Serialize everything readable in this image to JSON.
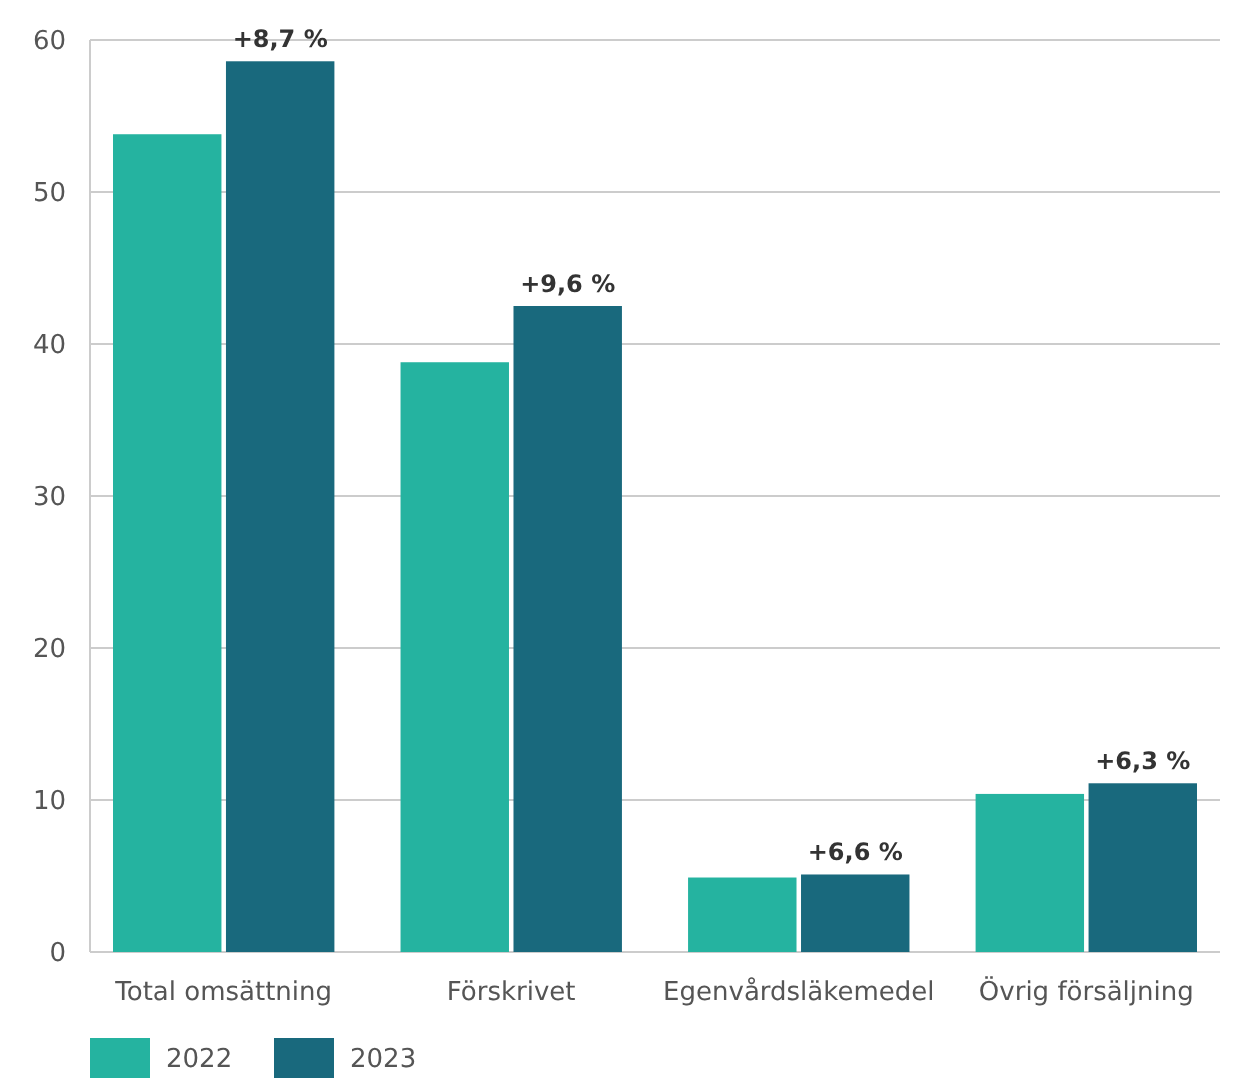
{
  "chart_data": {
    "type": "bar",
    "categories": [
      "Total omsättning",
      "Förskrivet",
      "Egenvårdsläkemedel",
      "Övrig försäljning"
    ],
    "series": [
      {
        "name": "2022",
        "color": "#25b3a0",
        "values": [
          53.8,
          38.8,
          4.9,
          10.4
        ]
      },
      {
        "name": "2023",
        "color": "#19697d",
        "values": [
          58.6,
          42.5,
          5.1,
          11.1
        ]
      }
    ],
    "annotations": [
      {
        "text": "+8,7 %",
        "x": "Total omsättning",
        "y": 58.6
      },
      {
        "text": "+9,6 %",
        "x": "Förskrivet",
        "y": 42.5
      },
      {
        "text": "+6,6 %",
        "x": "Egenvårdsläkemedel",
        "y": 5.1
      },
      {
        "text": "+6,3 %",
        "x": "Övrig försäljning",
        "y": 11.1
      }
    ],
    "ylim": [
      0,
      60
    ],
    "yticks": [
      0,
      10,
      20,
      30,
      40,
      50,
      60
    ],
    "grid": "y",
    "legend": "bottom left"
  }
}
